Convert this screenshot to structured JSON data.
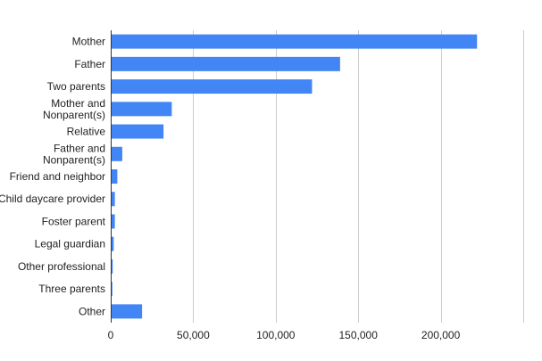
{
  "chart_data": {
    "type": "bar",
    "orientation": "horizontal",
    "categories": [
      "Mother",
      "Father",
      "Two parents",
      "Mother and Nonparent(s)",
      "Relative",
      "Father and Nonparent(s)",
      "Friend and neighbor",
      "Child daycare provider",
      "Foster parent",
      "Legal guardian",
      "Other professional",
      "Three parents",
      "Other"
    ],
    "category_lines": [
      [
        "Mother"
      ],
      [
        "Father"
      ],
      [
        "Two parents"
      ],
      [
        "Mother and",
        "Nonparent(s)"
      ],
      [
        "Relative"
      ],
      [
        "Father and",
        "Nonparent(s)"
      ],
      [
        "Friend and neighbor"
      ],
      [
        "Child daycare provider"
      ],
      [
        "Foster parent"
      ],
      [
        "Legal guardian"
      ],
      [
        "Other professional"
      ],
      [
        "Three parents"
      ],
      [
        "Other"
      ]
    ],
    "values": [
      222000,
      139000,
      122000,
      37000,
      32000,
      7000,
      4000,
      2500,
      2500,
      1800,
      1200,
      1000,
      19000
    ],
    "xlim": [
      0,
      250000
    ],
    "xticks": [
      0,
      50000,
      100000,
      150000,
      200000
    ],
    "xtick_labels": [
      "0",
      "50,000",
      "100,000",
      "150,000",
      "200,000"
    ],
    "grid": "vertical",
    "bar_color": "#4285f4",
    "title": "",
    "xlabel": "",
    "ylabel": ""
  }
}
